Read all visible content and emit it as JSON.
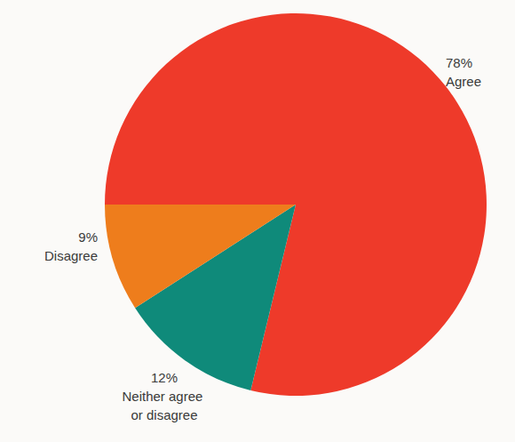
{
  "chart_data": {
    "type": "pie",
    "categories": [
      "Agree",
      "Neither agree or disagree",
      "Disagree"
    ],
    "values": [
      78,
      12,
      9
    ],
    "value_labels": [
      "78%",
      "12%",
      "9%"
    ],
    "colors": [
      "#ee3a2a",
      "#0f8a7a",
      "#ee7d1c"
    ],
    "data_labels": true
  }
}
